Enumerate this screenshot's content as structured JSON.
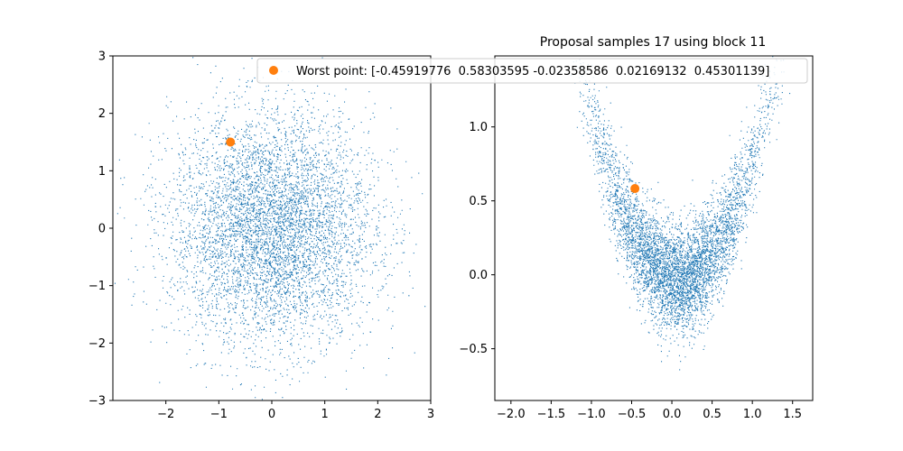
{
  "figure": {
    "legend_position": "upper-right",
    "accent_color": "#1f77b4",
    "worst_color": "#ff7f0e"
  },
  "chart_data": [
    {
      "type": "scatter",
      "title": "",
      "xlabel": "",
      "ylabel": "",
      "xlim": [
        -3.0,
        3.0
      ],
      "ylim": [
        -3.0,
        3.0
      ],
      "xticks": [
        -2,
        -1,
        0,
        1,
        2,
        3
      ],
      "xtick_labels": [
        "−2",
        "−1",
        "0",
        "1",
        "2",
        "3"
      ],
      "yticks": [
        -3,
        -2,
        -1,
        0,
        1,
        2,
        3
      ],
      "ytick_labels": [
        "−3",
        "−2",
        "−1",
        "0",
        "1",
        "2",
        "3"
      ],
      "grid": false,
      "series": [
        {
          "kind": "samples",
          "color": "#1f77b4",
          "distribution": "2D Gaussian cloud centered near (0, 0), std ≈ 1",
          "approx_count": 10000
        },
        {
          "kind": "highlight",
          "color": "#ff7f0e",
          "x": [
            -0.78
          ],
          "y": [
            1.5
          ]
        }
      ]
    },
    {
      "type": "scatter",
      "title": "Proposal samples 17 using block 11",
      "xlabel": "",
      "ylabel": "",
      "xlim": [
        -2.2,
        1.75
      ],
      "ylim": [
        -0.85,
        1.48
      ],
      "xticks": [
        -2.0,
        -1.5,
        -1.0,
        -0.5,
        0.0,
        0.5,
        1.0,
        1.5
      ],
      "xtick_labels": [
        "−2.0",
        "−1.5",
        "−1.0",
        "−0.5",
        "0.0",
        "0.5",
        "1.0",
        "1.5"
      ],
      "yticks": [
        -0.5,
        0.0,
        0.5,
        1.0
      ],
      "ytick_labels": [
        "−0.5",
        "0.0",
        "0.5",
        "1.0"
      ],
      "grid": false,
      "legend": [
        {
          "label": "Worst point: [-0.45919776  0.58303595 -0.02358586  0.02169132  0.45301139]",
          "color": "#ff7f0e"
        }
      ],
      "series": [
        {
          "kind": "samples",
          "color": "#1f77b4",
          "distribution": "banana / V-shaped density (y ≈ x², lower tail to y ≈ -0.7)",
          "approx_count": 10000
        },
        {
          "kind": "highlight",
          "name": "Worst point: [-0.45919776  0.58303595 -0.02358586  0.02169132  0.45301139]",
          "color": "#ff7f0e",
          "x": [
            -0.4592
          ],
          "y": [
            0.583
          ]
        }
      ]
    }
  ]
}
